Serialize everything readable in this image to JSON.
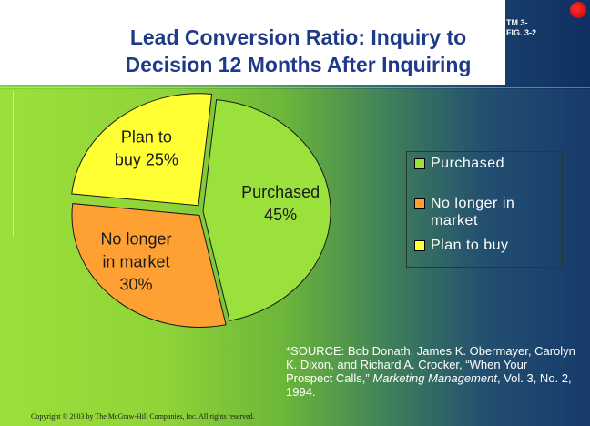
{
  "header": {
    "title_line1": "Lead Conversion Ratio:  Inquiry to",
    "title_line2": "Decision 12 Months After Inquiring",
    "tm_line1": "TM 3-",
    "tm_line2": "FIG. 3-2"
  },
  "chart_data": {
    "type": "pie",
    "title": "Lead Conversion Ratio:  Inquiry to Decision 12 Months After Inquiring",
    "slices": [
      {
        "name": "Purchased",
        "value": 45,
        "label_line1": "Purchased",
        "label_line2": "45%",
        "color": "#9ae23b"
      },
      {
        "name": "No longer in market",
        "value": 30,
        "label_line1": "No longer",
        "label_line2": "in market",
        "label_line3": "30%",
        "color": "#ffa033"
      },
      {
        "name": "Plan to buy",
        "value": 25,
        "label_line1": "Plan to",
        "label_line2": "buy 25%",
        "color": "#ffff33"
      }
    ],
    "legend": {
      "position": "right",
      "items": [
        {
          "line1": "Purchased",
          "color": "#9ae23b"
        },
        {
          "line1": "No longer in",
          "line2": "market",
          "color": "#ffa033"
        },
        {
          "line1": "Plan to buy",
          "color": "#ffff33"
        }
      ]
    }
  },
  "source": {
    "text1": "*SOURCE:  Bob Donath, James K. Obermayer, Carolyn K. Dixon, and Richard A. Crocker, “When Your Prospect Calls,” ",
    "journal": "Marketing Management",
    "text2": ", Vol. 3, No. 2, 1994."
  },
  "footer": {
    "copyright": "Copyright © 2003 by The McGraw-Hill Companies, Inc.  All rights reserved."
  }
}
